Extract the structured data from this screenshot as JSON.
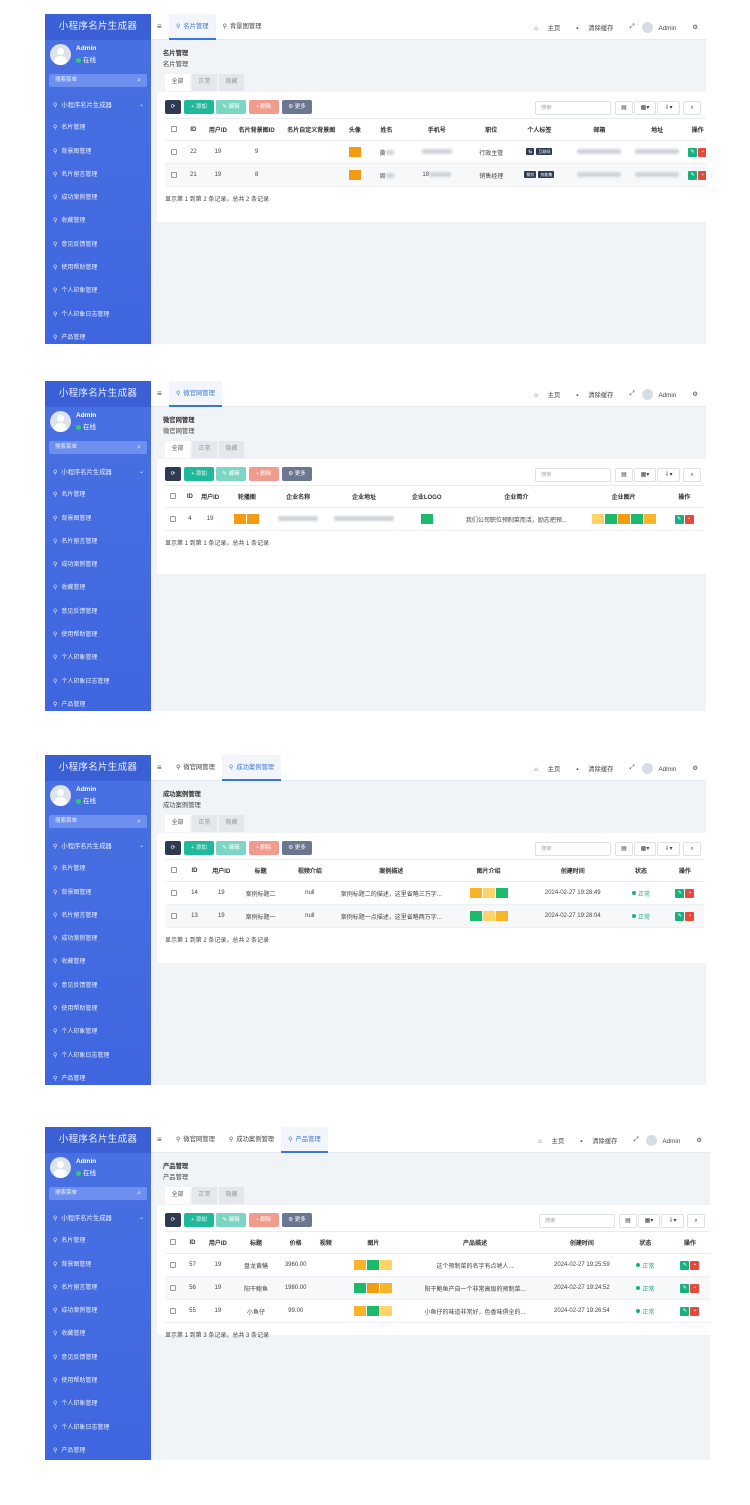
{
  "sidebar": {
    "logo": "小程序名片生成器",
    "user_name": "Admin",
    "user_status": "在线",
    "search_placeholder": "搜索菜单",
    "group": "小程序名片生成器",
    "items": [
      "名片管理",
      "背景图管理",
      "名片留言管理",
      "成功案例管理",
      "收藏管理",
      "意见反馈管理",
      "使用帮助管理",
      "个人印象管理",
      "个人印象日志管理",
      "产品管理"
    ]
  },
  "topbar": {
    "home": "主页",
    "clear_cache": "清除缓存",
    "admin": "Admin"
  },
  "filters": [
    "全部",
    "正常",
    "隐藏"
  ],
  "toolbar": {
    "add": "添加",
    "edit": "编辑",
    "delete": "删除",
    "more": "更多",
    "search_placeholder": "搜索"
  },
  "screens": [
    {
      "tabs": [
        {
          "label": "名片管理",
          "active": true
        },
        {
          "label": "背景图管理",
          "active": false
        }
      ],
      "title": "名片管理",
      "subtitle": "名片管理",
      "columns": [
        "ID",
        "用户ID",
        "名片背景图ID",
        "名片自定义背景图",
        "头像",
        "姓名",
        "手机号",
        "职位",
        "个人标签",
        "邮箱",
        "地址",
        "操作"
      ],
      "rows": [
        {
          "id": "22",
          "user_id": "19",
          "bg_id": "9",
          "name": "黄",
          "position": "行政主管",
          "tags": [
            "标",
            "互联网"
          ]
        },
        {
          "id": "21",
          "user_id": "19",
          "bg_id": "8",
          "name": "周",
          "phone": "18",
          "position": "销售经理",
          "tags": [
            "餐饮",
            "技能集"
          ]
        }
      ],
      "summary": "显示第 1 到第 2 条记录，总共 2 条记录"
    },
    {
      "tabs": [
        {
          "label": "微官网管理",
          "active": true
        }
      ],
      "title": "微官网管理",
      "subtitle": "微官网管理",
      "columns": [
        "ID",
        "用户ID",
        "轮播图",
        "企业名称",
        "企业地址",
        "企业LOGO",
        "企业简介",
        "企业图片",
        "操作"
      ],
      "rows": [
        {
          "id": "4",
          "user_id": "19",
          "intro": "我们公司职位预制菜而活，励志把预..."
        }
      ],
      "summary": "显示第 1 到第 1 条记录，总共 1 条记录"
    },
    {
      "tabs": [
        {
          "label": "微官网管理",
          "active": false
        },
        {
          "label": "成功案例管理",
          "active": true
        }
      ],
      "title": "成功案例管理",
      "subtitle": "成功案例管理",
      "columns": [
        "ID",
        "用户ID",
        "标题",
        "视频介绍",
        "案例描述",
        "图片介绍",
        "创建时间",
        "状态",
        "操作"
      ],
      "rows": [
        {
          "id": "14",
          "user_id": "19",
          "title": "案例标题二",
          "video": "null",
          "desc": "案例标题二的描述，这里省略三万字...",
          "time": "2024-02-27 19:28:49",
          "status": "正常"
        },
        {
          "id": "13",
          "user_id": "19",
          "title": "案例标题一",
          "video": "null",
          "desc": "案例标题一点描述，这里省略两万字...",
          "time": "2024-02-27 19:28:04",
          "status": "正常"
        }
      ],
      "summary": "显示第 1 到第 2 条记录，总共 2 条记录"
    },
    {
      "tabs": [
        {
          "label": "微官网管理",
          "active": false
        },
        {
          "label": "成功案例管理",
          "active": false
        },
        {
          "label": "产品管理",
          "active": true
        }
      ],
      "title": "产品管理",
      "subtitle": "产品管理",
      "columns": [
        "ID",
        "用户ID",
        "标题",
        "价格",
        "视频",
        "图片",
        "产品描述",
        "创建时间",
        "状态",
        "操作"
      ],
      "rows": [
        {
          "id": "57",
          "user_id": "19",
          "title": "盘龙黄鳝",
          "price": "3960.00",
          "desc": "这个预制菜的名字有点唬人...",
          "time": "2024-02-27 19:25:59",
          "status": "正常"
        },
        {
          "id": "56",
          "user_id": "19",
          "title": "阳干鲍鱼",
          "price": "1980.00",
          "desc": "阳干鲍鱼产自一个非常高级的预制菜...",
          "time": "2024-02-27 19:24:52",
          "status": "正常"
        },
        {
          "id": "55",
          "user_id": "19",
          "title": "小鱼仔",
          "price": "99.00",
          "desc": "小鱼仔的味道非常好，色香味俱全的...",
          "time": "2024-02-27 19:26:54",
          "status": "正常"
        }
      ],
      "summary": "显示第 1 到第 3 条记录，总共 3 条记录"
    }
  ]
}
